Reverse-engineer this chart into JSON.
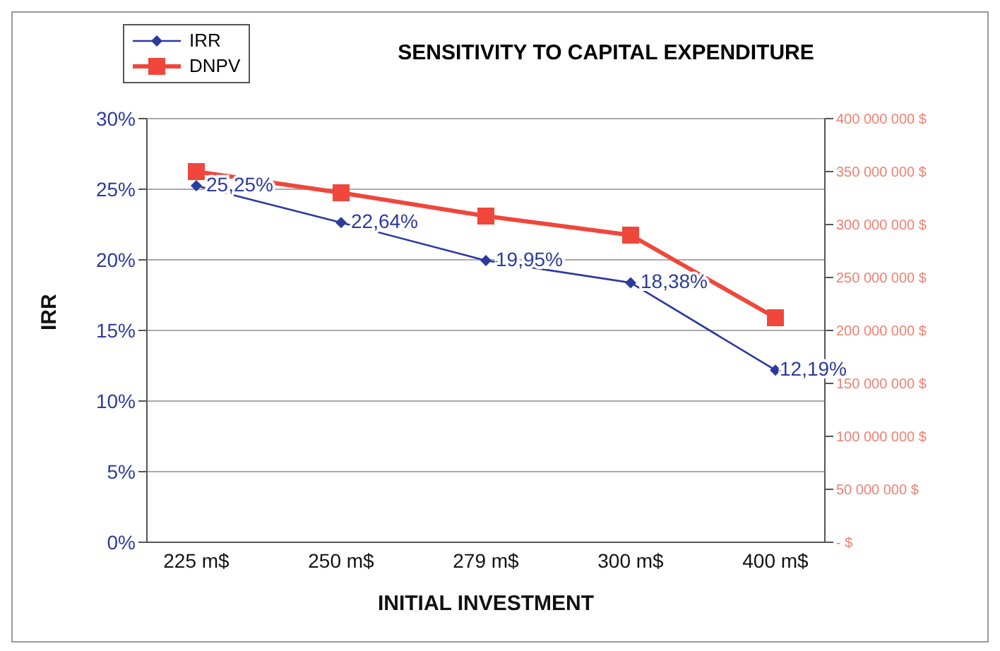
{
  "chart_data": {
    "type": "line",
    "title": "SENSITIVITY TO CAPITAL EXPENDITURE",
    "xlabel": "INITIAL INVESTMENT",
    "ylabel": "IRR",
    "categories": [
      "225 m$",
      "250 m$",
      "279 m$",
      "300 m$",
      "400 m$"
    ],
    "series": [
      {
        "name": "IRR",
        "color": "#2b3a9e",
        "values": [
          25.25,
          22.64,
          19.95,
          18.38,
          12.19
        ],
        "marker": "diamond",
        "value_labels": [
          "25,25%",
          "22,64%",
          "19,95%",
          "18,38%",
          "12,19%"
        ]
      },
      {
        "name": "DNPV",
        "color": "#f0463c",
        "values": [
          350000000,
          330000000,
          308000000,
          290000000,
          212000000
        ],
        "marker": "square",
        "axis": "y2"
      }
    ],
    "ylim": [
      0,
      30
    ],
    "yticks": [
      {
        "value": 0,
        "label": "0%"
      },
      {
        "value": 5,
        "label": "5%"
      },
      {
        "value": 10,
        "label": "10%"
      },
      {
        "value": 15,
        "label": "15%"
      },
      {
        "value": 20,
        "label": "20%"
      },
      {
        "value": 25,
        "label": "25%"
      },
      {
        "value": 30,
        "label": "30%"
      }
    ],
    "y2lim": [
      0,
      400000000
    ],
    "y2ticks": [
      {
        "value": 0,
        "label": "-  $"
      },
      {
        "value": 50000000,
        "label": "50 000 000  $"
      },
      {
        "value": 100000000,
        "label": "100 000 000  $"
      },
      {
        "value": 150000000,
        "label": "150 000 000  $"
      },
      {
        "value": 200000000,
        "label": "200 000 000  $"
      },
      {
        "value": 250000000,
        "label": "250 000 000  $"
      },
      {
        "value": 300000000,
        "label": "300 000 000  $"
      },
      {
        "value": 350000000,
        "label": "350 000 000  $"
      },
      {
        "value": 400000000,
        "label": "400 000 000  $"
      }
    ],
    "grid": "y",
    "legend": "top left"
  }
}
